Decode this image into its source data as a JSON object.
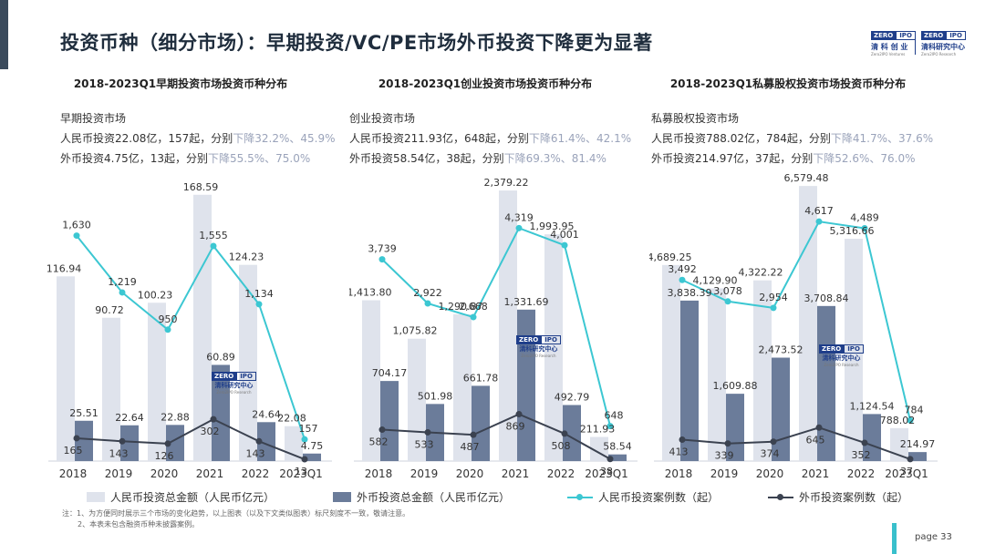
{
  "page_title": "投资币种（细分市场）：早期投资/VC/PE市场外币投资下降更为显著",
  "logos": [
    {
      "zero": "ZERO",
      "ipo": "IPO",
      "cn": "清 科 创 业",
      "en": "Zero2IPO Ventures"
    },
    {
      "zero": "ZERO",
      "ipo": "IPO",
      "cn": "清科研究中心",
      "en": "Zero2IPO Research"
    }
  ],
  "watermark": {
    "zero": "ZERO",
    "ipo": "IPO",
    "cn": "清科研究中心",
    "en": "Zero2IPO Research"
  },
  "colors": {
    "rmb_bar": "#dfe3ec",
    "fx_bar": "#6b7c9a",
    "rmb_line": "#3cc7d2",
    "fx_line": "#3b4250"
  },
  "panels": [
    {
      "title": "2018-2023Q1早期投资市场投资币种分布",
      "market": "早期投资市场",
      "line1_pre": "人民币投资22.08亿，157起，分别",
      "line1_hl": "下降32.2%、45.9%",
      "line2_pre": "外币投资4.75亿，13起，分别",
      "line2_hl": "下降55.5%、75.0%"
    },
    {
      "title": "2018-2023Q1创业投资市场投资币种分布",
      "market": "创业投资市场",
      "line1_pre": "人民币投资211.93亿，648起，分别",
      "line1_hl": "下降61.4%、42.1%",
      "line2_pre": "外币投资58.54亿，38起，分别",
      "line2_hl": "下降69.3%、81.4%"
    },
    {
      "title": "2018-2023Q1私募股权投资市场投资币种分布",
      "market": "私募股权投资市场",
      "line1_pre": "人民币投资788.02亿，784起，分别",
      "line1_hl": "下降41.7%、37.6%",
      "line2_pre": "外币投资214.97亿，37起，分别",
      "line2_hl": "下降52.6%、76.0%"
    }
  ],
  "chart_data": [
    {
      "type": "bar",
      "categories": [
        "2018",
        "2019",
        "2020",
        "2021",
        "2022",
        "2023Q1"
      ],
      "series": [
        {
          "name": "人民币投资总金额（人民币亿元）",
          "kind": "bar",
          "values": [
            116.94,
            90.72,
            100.23,
            168.59,
            124.23,
            22.08
          ],
          "labels": [
            "116.94",
            "90.72",
            "100.23",
            "168.59",
            "124.23",
            "22.08"
          ]
        },
        {
          "name": "外币投资总金额（人民币亿元）",
          "kind": "bar",
          "values": [
            25.51,
            22.64,
            22.88,
            60.89,
            24.64,
            4.75
          ],
          "labels": [
            "25.51",
            "22.64",
            "22.88",
            "60.89",
            "24.64",
            "4.75"
          ]
        },
        {
          "name": "人民币投资案例数（起）",
          "kind": "line",
          "values": [
            1630,
            1219,
            950,
            1555,
            1134,
            157
          ],
          "labels": [
            "1,630",
            "1,219",
            "950",
            "1,555",
            "1,134",
            "157"
          ]
        },
        {
          "name": "外币投资案例数（起）",
          "kind": "line",
          "values": [
            165,
            143,
            126,
            302,
            143,
            13
          ],
          "labels": [
            "165",
            "143",
            "126",
            "302",
            "143",
            "13"
          ]
        }
      ],
      "bar_max": 180,
      "line_max": 1950
    },
    {
      "type": "bar",
      "categories": [
        "2018",
        "2019",
        "2020",
        "2021",
        "2022",
        "2023Q1"
      ],
      "series": [
        {
          "name": "人民币投资总金额（人民币亿元）",
          "kind": "bar",
          "values": [
            1413.8,
            1075.82,
            1290.87,
            2379.22,
            1993.95,
            211.93
          ],
          "labels": [
            "1,413.80",
            "1,075.82",
            "1,290.87",
            "2,379.22",
            "1,993.95",
            "211.93"
          ]
        },
        {
          "name": "外币投资总金额（人民币亿元）",
          "kind": "bar",
          "values": [
            704.17,
            501.98,
            661.78,
            1331.69,
            492.79,
            58.54
          ],
          "labels": [
            "704.17",
            "501.98",
            "661.78",
            "1,331.69",
            "492.79",
            "58.54"
          ]
        },
        {
          "name": "人民币投资案例数（起）",
          "kind": "line",
          "values": [
            3739,
            2922,
            2668,
            4319,
            4001,
            648
          ],
          "labels": [
            "3,739",
            "2,922",
            "2,668",
            "4,319",
            "4,001",
            "648"
          ]
        },
        {
          "name": "外币投资案例数（起）",
          "kind": "line",
          "values": [
            582,
            533,
            487,
            869,
            508,
            38
          ],
          "labels": [
            "582",
            "533",
            "487",
            "869",
            "508",
            "38"
          ]
        }
      ],
      "bar_max": 2500,
      "line_max": 5000
    },
    {
      "type": "bar",
      "categories": [
        "2018",
        "2019",
        "2020",
        "2021",
        "2022",
        "2023Q1"
      ],
      "series": [
        {
          "name": "人民币投资总金额（人民币亿元）",
          "kind": "bar",
          "values": [
            4689.25,
            4129.9,
            4322.22,
            6579.48,
            5316.66,
            788.02
          ],
          "labels": [
            "4,689.25",
            "4,129.90",
            "4,322.22",
            "6,579.48",
            "5,316.66",
            "788.02"
          ]
        },
        {
          "name": "外币投资总金额（人民币亿元）",
          "kind": "bar",
          "values": [
            3838.39,
            1609.88,
            2473.52,
            3708.84,
            1124.54,
            214.97
          ],
          "labels": [
            "3,838.39",
            "1,609.88",
            "2,473.52",
            "3,708.84",
            "1,124.54",
            "214.97"
          ]
        },
        {
          "name": "人民币投资案例数（起）",
          "kind": "line",
          "values": [
            3492,
            3078,
            2954,
            4617,
            4489,
            784
          ],
          "labels": [
            "3,492",
            "3,078",
            "2,954",
            "4,617",
            "4,489",
            "784"
          ]
        },
        {
          "name": "外币投资案例数（起）",
          "kind": "line",
          "values": [
            413,
            339,
            374,
            645,
            352,
            37
          ],
          "labels": [
            "413",
            "339",
            "374",
            "645",
            "352",
            "37"
          ]
        }
      ],
      "bar_max": 6800,
      "line_max": 5200
    }
  ],
  "legend": {
    "rmb_amount": "人民币投资总金额（人民币亿元）",
    "fx_amount": "外币投资总金额（人民币亿元）",
    "rmb_count": "人民币投资案例数（起）",
    "fx_count": "外币投资案例数（起）"
  },
  "notes": {
    "line1": "注：1、为方便同时展示三个市场的变化趋势，以上图表（以及下文类似图表）标尺刻度不一致，敬请注意。",
    "line2": "2、本表未包含融资币种未披露案例。"
  },
  "page": "page  33"
}
